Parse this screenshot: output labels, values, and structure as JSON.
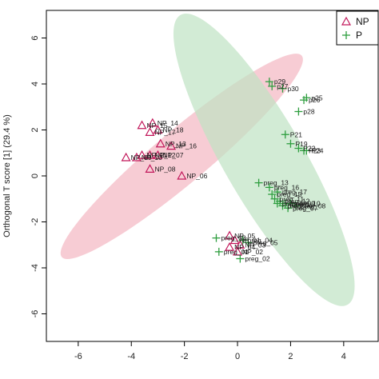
{
  "chart_data": {
    "type": "scatter",
    "ylabel": "Orthogonal T score [1] (29.4 %)",
    "xlim": [
      -7.2,
      5.3
    ],
    "ylim": [
      -7.2,
      7.2
    ],
    "x_ticks": [
      "-6",
      "-4",
      "-2",
      "0",
      "2",
      "4"
    ],
    "x_tick_values": [
      -6,
      -4,
      -2,
      0,
      2,
      4
    ],
    "y_ticks": [
      "-6",
      "-4",
      "-2",
      "0",
      "2",
      "4",
      "6"
    ],
    "y_tick_values": [
      -6,
      -4,
      -2,
      0,
      2,
      4,
      6
    ],
    "legend_position": "top-right",
    "series": [
      {
        "name": "NP",
        "marker": "triangle",
        "color": "#c2185b",
        "ellipse": {
          "color": "#f4b6c2",
          "center": [
            -2.1,
            0.85
          ],
          "rx": 5.9,
          "ry": 1.15,
          "angle_deg": -40
        },
        "points": [
          {
            "label": "NP_15",
            "x": -3.6,
            "y": 2.2
          },
          {
            "label": "NP_14",
            "x": -3.2,
            "y": 2.3
          },
          {
            "label": "NP_18",
            "x": -3.0,
            "y": 2.0
          },
          {
            "label": "NP_17",
            "x": -3.3,
            "y": 1.9
          },
          {
            "label": "NP_13",
            "x": -2.9,
            "y": 1.4
          },
          {
            "label": "NP_16",
            "x": -2.5,
            "y": 1.3
          },
          {
            "label": "NP_09",
            "x": -4.2,
            "y": 0.8
          },
          {
            "label": "NP_10",
            "x": -3.8,
            "y": 0.8
          },
          {
            "label": "NP_11",
            "x": -3.6,
            "y": 0.9
          },
          {
            "label": "NP_12",
            "x": -3.3,
            "y": 0.9
          },
          {
            "label": "NP_07",
            "x": -3.0,
            "y": 0.9
          },
          {
            "label": "NP_08",
            "x": -3.3,
            "y": 0.3
          },
          {
            "label": "NP_06",
            "x": -2.1,
            "y": 0.0
          },
          {
            "label": "NP_05",
            "x": -0.3,
            "y": -2.6
          },
          {
            "label": "NP_01",
            "x": -0.1,
            "y": -2.8
          },
          {
            "label": "NP_03",
            "x": 0.1,
            "y": -3.0
          },
          {
            "label": "NP_04",
            "x": -0.3,
            "y": -3.1
          },
          {
            "label": "NP_02",
            "x": 0.0,
            "y": -3.3
          }
        ]
      },
      {
        "name": "P",
        "marker": "plus",
        "color": "#2e9e3f",
        "ellipse": {
          "color": "#bfe3c3",
          "center": [
            1.0,
            0.7
          ],
          "rx": 6.3,
          "ry": 1.75,
          "angle_deg": 60
        },
        "points": [
          {
            "label": "p29",
            "x": 1.2,
            "y": 4.1
          },
          {
            "label": "p27",
            "x": 1.3,
            "y": 3.9
          },
          {
            "label": "p30",
            "x": 1.7,
            "y": 3.8
          },
          {
            "label": "p25",
            "x": 2.6,
            "y": 3.4
          },
          {
            "label": "p26",
            "x": 2.5,
            "y": 3.3
          },
          {
            "label": "p28",
            "x": 2.3,
            "y": 2.8
          },
          {
            "label": "P21",
            "x": 1.8,
            "y": 1.8
          },
          {
            "label": "P19",
            "x": 2.0,
            "y": 1.4
          },
          {
            "label": "P22",
            "x": 2.3,
            "y": 1.2
          },
          {
            "label": "P23",
            "x": 2.5,
            "y": 1.1
          },
          {
            "label": "P24",
            "x": 2.6,
            "y": 1.1
          },
          {
            "label": "preg_13",
            "x": 0.8,
            "y": -0.3
          },
          {
            "label": "preg_16",
            "x": 1.2,
            "y": -0.5
          },
          {
            "label": "preg_17",
            "x": 1.5,
            "y": -0.7
          },
          {
            "label": "preg_15",
            "x": 1.3,
            "y": -0.8
          },
          {
            "label": "preg_11",
            "x": 1.4,
            "y": -1.0
          },
          {
            "label": "preg_12",
            "x": 1.6,
            "y": -1.1
          },
          {
            "label": "preg_09",
            "x": 1.8,
            "y": -1.2
          },
          {
            "label": "preg_10",
            "x": 2.0,
            "y": -1.2
          },
          {
            "label": "preg_14",
            "x": 1.5,
            "y": -1.2
          },
          {
            "label": "preg_08",
            "x": 2.2,
            "y": -1.3
          },
          {
            "label": "preg_07",
            "x": 1.9,
            "y": -1.4
          },
          {
            "label": "preg_06",
            "x": 1.7,
            "y": -1.3
          },
          {
            "label": "preg_05",
            "x": 0.4,
            "y": -2.9
          },
          {
            "label": "preg_04",
            "x": 0.2,
            "y": -2.8
          },
          {
            "label": "preg_03",
            "x": -0.8,
            "y": -2.7
          },
          {
            "label": "preg_01",
            "x": -0.7,
            "y": -3.3
          },
          {
            "label": "preg_02",
            "x": 0.1,
            "y": -3.6
          }
        ]
      }
    ]
  }
}
